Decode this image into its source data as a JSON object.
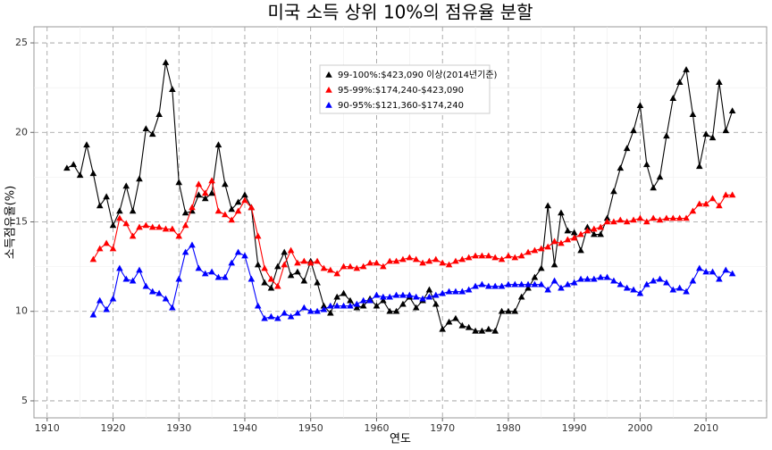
{
  "chart_data": {
    "type": "line",
    "title": "미국 소득 상위 10%의 점유율 분할",
    "x_label": "연도",
    "y_label": "소득점유율(%)",
    "xlim": [
      1908,
      2019.2
    ],
    "ylim": [
      4.05,
      25.9
    ],
    "xticks": [
      1910,
      1920,
      1930,
      1940,
      1950,
      1960,
      1970,
      1980,
      1990,
      2000,
      2010
    ],
    "yticks": [
      5,
      10,
      15,
      20,
      25
    ],
    "grid": true,
    "legend_position": "top",
    "series": [
      {
        "name": "99-100%:$423,090 이상(2014년기준)",
        "color": "#000000",
        "x": [
          1913,
          1914,
          1915,
          1916,
          1917,
          1918,
          1919,
          1920,
          1921,
          1922,
          1923,
          1924,
          1925,
          1926,
          1927,
          1928,
          1929,
          1930,
          1931,
          1932,
          1933,
          1934,
          1935,
          1936,
          1937,
          1938,
          1939,
          1940,
          1941,
          1942,
          1943,
          1944,
          1945,
          1946,
          1947,
          1948,
          1949,
          1950,
          1951,
          1952,
          1953,
          1954,
          1955,
          1956,
          1957,
          1958,
          1959,
          1960,
          1961,
          1962,
          1963,
          1964,
          1965,
          1966,
          1967,
          1968,
          1969,
          1970,
          1971,
          1972,
          1973,
          1974,
          1975,
          1976,
          1977,
          1978,
          1979,
          1980,
          1981,
          1982,
          1983,
          1984,
          1985,
          1986,
          1987,
          1988,
          1989,
          1990,
          1991,
          1992,
          1993,
          1994,
          1995,
          1996,
          1997,
          1998,
          1999,
          2000,
          2001,
          2002,
          2003,
          2004,
          2005,
          2006,
          2007,
          2008,
          2009,
          2010,
          2011,
          2012,
          2013,
          2014
        ],
        "values": [
          18.0,
          18.2,
          17.6,
          19.3,
          17.7,
          15.9,
          16.4,
          14.8,
          15.6,
          17.0,
          15.6,
          17.4,
          20.2,
          19.9,
          21.0,
          23.9,
          22.4,
          17.2,
          15.5,
          15.6,
          16.5,
          16.3,
          16.6,
          19.3,
          17.1,
          15.7,
          16.1,
          16.5,
          15.8,
          12.6,
          11.6,
          11.3,
          12.5,
          13.3,
          12.0,
          12.2,
          11.7,
          12.8,
          11.6,
          10.3,
          9.9,
          10.8,
          11.0,
          10.6,
          10.2,
          10.3,
          10.7,
          10.3,
          10.6,
          10.0,
          10.0,
          10.4,
          10.8,
          10.2,
          10.6,
          11.2,
          10.4,
          9.0,
          9.4,
          9.6,
          9.2,
          9.1,
          8.9,
          8.9,
          9.0,
          8.9,
          10.0,
          10.0,
          10.0,
          10.8,
          11.3,
          11.9,
          12.4,
          15.9,
          12.6,
          15.5,
          14.5,
          14.4,
          13.4,
          14.7,
          14.3,
          14.3,
          15.2,
          16.7,
          18.0,
          19.1,
          20.1,
          21.5,
          18.2,
          16.9,
          17.5,
          19.8,
          21.9,
          22.8,
          23.5,
          21.0,
          18.1,
          19.9,
          19.7,
          22.8,
          20.1,
          21.2
        ]
      },
      {
        "name": "95-99%:$174,240-$423,090",
        "color": "#ff0000",
        "x": [
          1917,
          1918,
          1919,
          1920,
          1921,
          1922,
          1923,
          1924,
          1925,
          1926,
          1927,
          1928,
          1929,
          1930,
          1931,
          1932,
          1933,
          1934,
          1935,
          1936,
          1937,
          1938,
          1939,
          1940,
          1941,
          1942,
          1943,
          1944,
          1945,
          1946,
          1947,
          1948,
          1949,
          1950,
          1951,
          1952,
          1953,
          1954,
          1955,
          1956,
          1957,
          1958,
          1959,
          1960,
          1961,
          1962,
          1963,
          1964,
          1965,
          1966,
          1967,
          1968,
          1969,
          1970,
          1971,
          1972,
          1973,
          1974,
          1975,
          1976,
          1977,
          1978,
          1979,
          1980,
          1981,
          1982,
          1983,
          1984,
          1985,
          1986,
          1987,
          1988,
          1989,
          1990,
          1991,
          1992,
          1993,
          1994,
          1995,
          1996,
          1997,
          1998,
          1999,
          2000,
          2001,
          2002,
          2003,
          2004,
          2005,
          2006,
          2007,
          2008,
          2009,
          2010,
          2011,
          2012,
          2013,
          2014
        ],
        "values": [
          12.9,
          13.5,
          13.8,
          13.5,
          15.2,
          14.9,
          14.2,
          14.7,
          14.8,
          14.7,
          14.7,
          14.6,
          14.6,
          14.2,
          14.8,
          15.8,
          17.1,
          16.6,
          17.3,
          15.6,
          15.4,
          15.1,
          15.6,
          16.2,
          15.8,
          14.2,
          12.4,
          11.8,
          11.4,
          12.6,
          13.4,
          12.7,
          12.8,
          12.7,
          12.8,
          12.4,
          12.3,
          12.1,
          12.5,
          12.5,
          12.4,
          12.5,
          12.7,
          12.7,
          12.5,
          12.8,
          12.8,
          12.9,
          13.0,
          12.9,
          12.7,
          12.8,
          12.9,
          12.7,
          12.6,
          12.8,
          12.9,
          13.0,
          13.1,
          13.1,
          13.1,
          13.0,
          12.9,
          13.1,
          13.0,
          13.1,
          13.3,
          13.4,
          13.5,
          13.6,
          13.9,
          13.8,
          14.0,
          14.1,
          14.3,
          14.5,
          14.6,
          14.7,
          15.0,
          15.0,
          15.1,
          15.0,
          15.1,
          15.2,
          15.0,
          15.2,
          15.1,
          15.2,
          15.2,
          15.2,
          15.2,
          15.6,
          16.0,
          16.0,
          16.3,
          15.9,
          16.5,
          16.5
        ]
      },
      {
        "name": "90-95%:$121,360-$174,240",
        "color": "#0000ff",
        "x": [
          1917,
          1918,
          1919,
          1920,
          1921,
          1922,
          1923,
          1924,
          1925,
          1926,
          1927,
          1928,
          1929,
          1930,
          1931,
          1932,
          1933,
          1934,
          1935,
          1936,
          1937,
          1938,
          1939,
          1940,
          1941,
          1942,
          1943,
          1944,
          1945,
          1946,
          1947,
          1948,
          1949,
          1950,
          1951,
          1952,
          1953,
          1954,
          1955,
          1956,
          1957,
          1958,
          1959,
          1960,
          1961,
          1962,
          1963,
          1964,
          1965,
          1966,
          1967,
          1968,
          1969,
          1970,
          1971,
          1972,
          1973,
          1974,
          1975,
          1976,
          1977,
          1978,
          1979,
          1980,
          1981,
          1982,
          1983,
          1984,
          1985,
          1986,
          1987,
          1988,
          1989,
          1990,
          1991,
          1992,
          1993,
          1994,
          1995,
          1996,
          1997,
          1998,
          1999,
          2000,
          2001,
          2002,
          2003,
          2004,
          2005,
          2006,
          2007,
          2008,
          2009,
          2010,
          2011,
          2012,
          2013,
          2014
        ],
        "values": [
          9.8,
          10.6,
          10.1,
          10.7,
          12.4,
          11.8,
          11.7,
          12.3,
          11.4,
          11.1,
          11.0,
          10.7,
          10.2,
          11.8,
          13.3,
          13.7,
          12.4,
          12.1,
          12.2,
          11.9,
          11.9,
          12.7,
          13.3,
          13.1,
          11.8,
          10.3,
          9.6,
          9.7,
          9.6,
          9.9,
          9.7,
          9.9,
          10.2,
          10.0,
          10.0,
          10.1,
          10.3,
          10.3,
          10.3,
          10.3,
          10.4,
          10.6,
          10.6,
          10.9,
          10.8,
          10.8,
          10.9,
          10.9,
          10.9,
          10.8,
          10.7,
          10.8,
          10.9,
          11.0,
          11.1,
          11.1,
          11.1,
          11.2,
          11.4,
          11.5,
          11.4,
          11.4,
          11.4,
          11.5,
          11.5,
          11.5,
          11.5,
          11.5,
          11.5,
          11.2,
          11.7,
          11.3,
          11.5,
          11.6,
          11.8,
          11.8,
          11.8,
          11.9,
          11.9,
          11.7,
          11.5,
          11.3,
          11.2,
          11.0,
          11.5,
          11.7,
          11.8,
          11.6,
          11.2,
          11.3,
          11.1,
          11.7,
          12.4,
          12.2,
          12.2,
          11.8,
          12.3,
          12.1
        ]
      }
    ]
  }
}
